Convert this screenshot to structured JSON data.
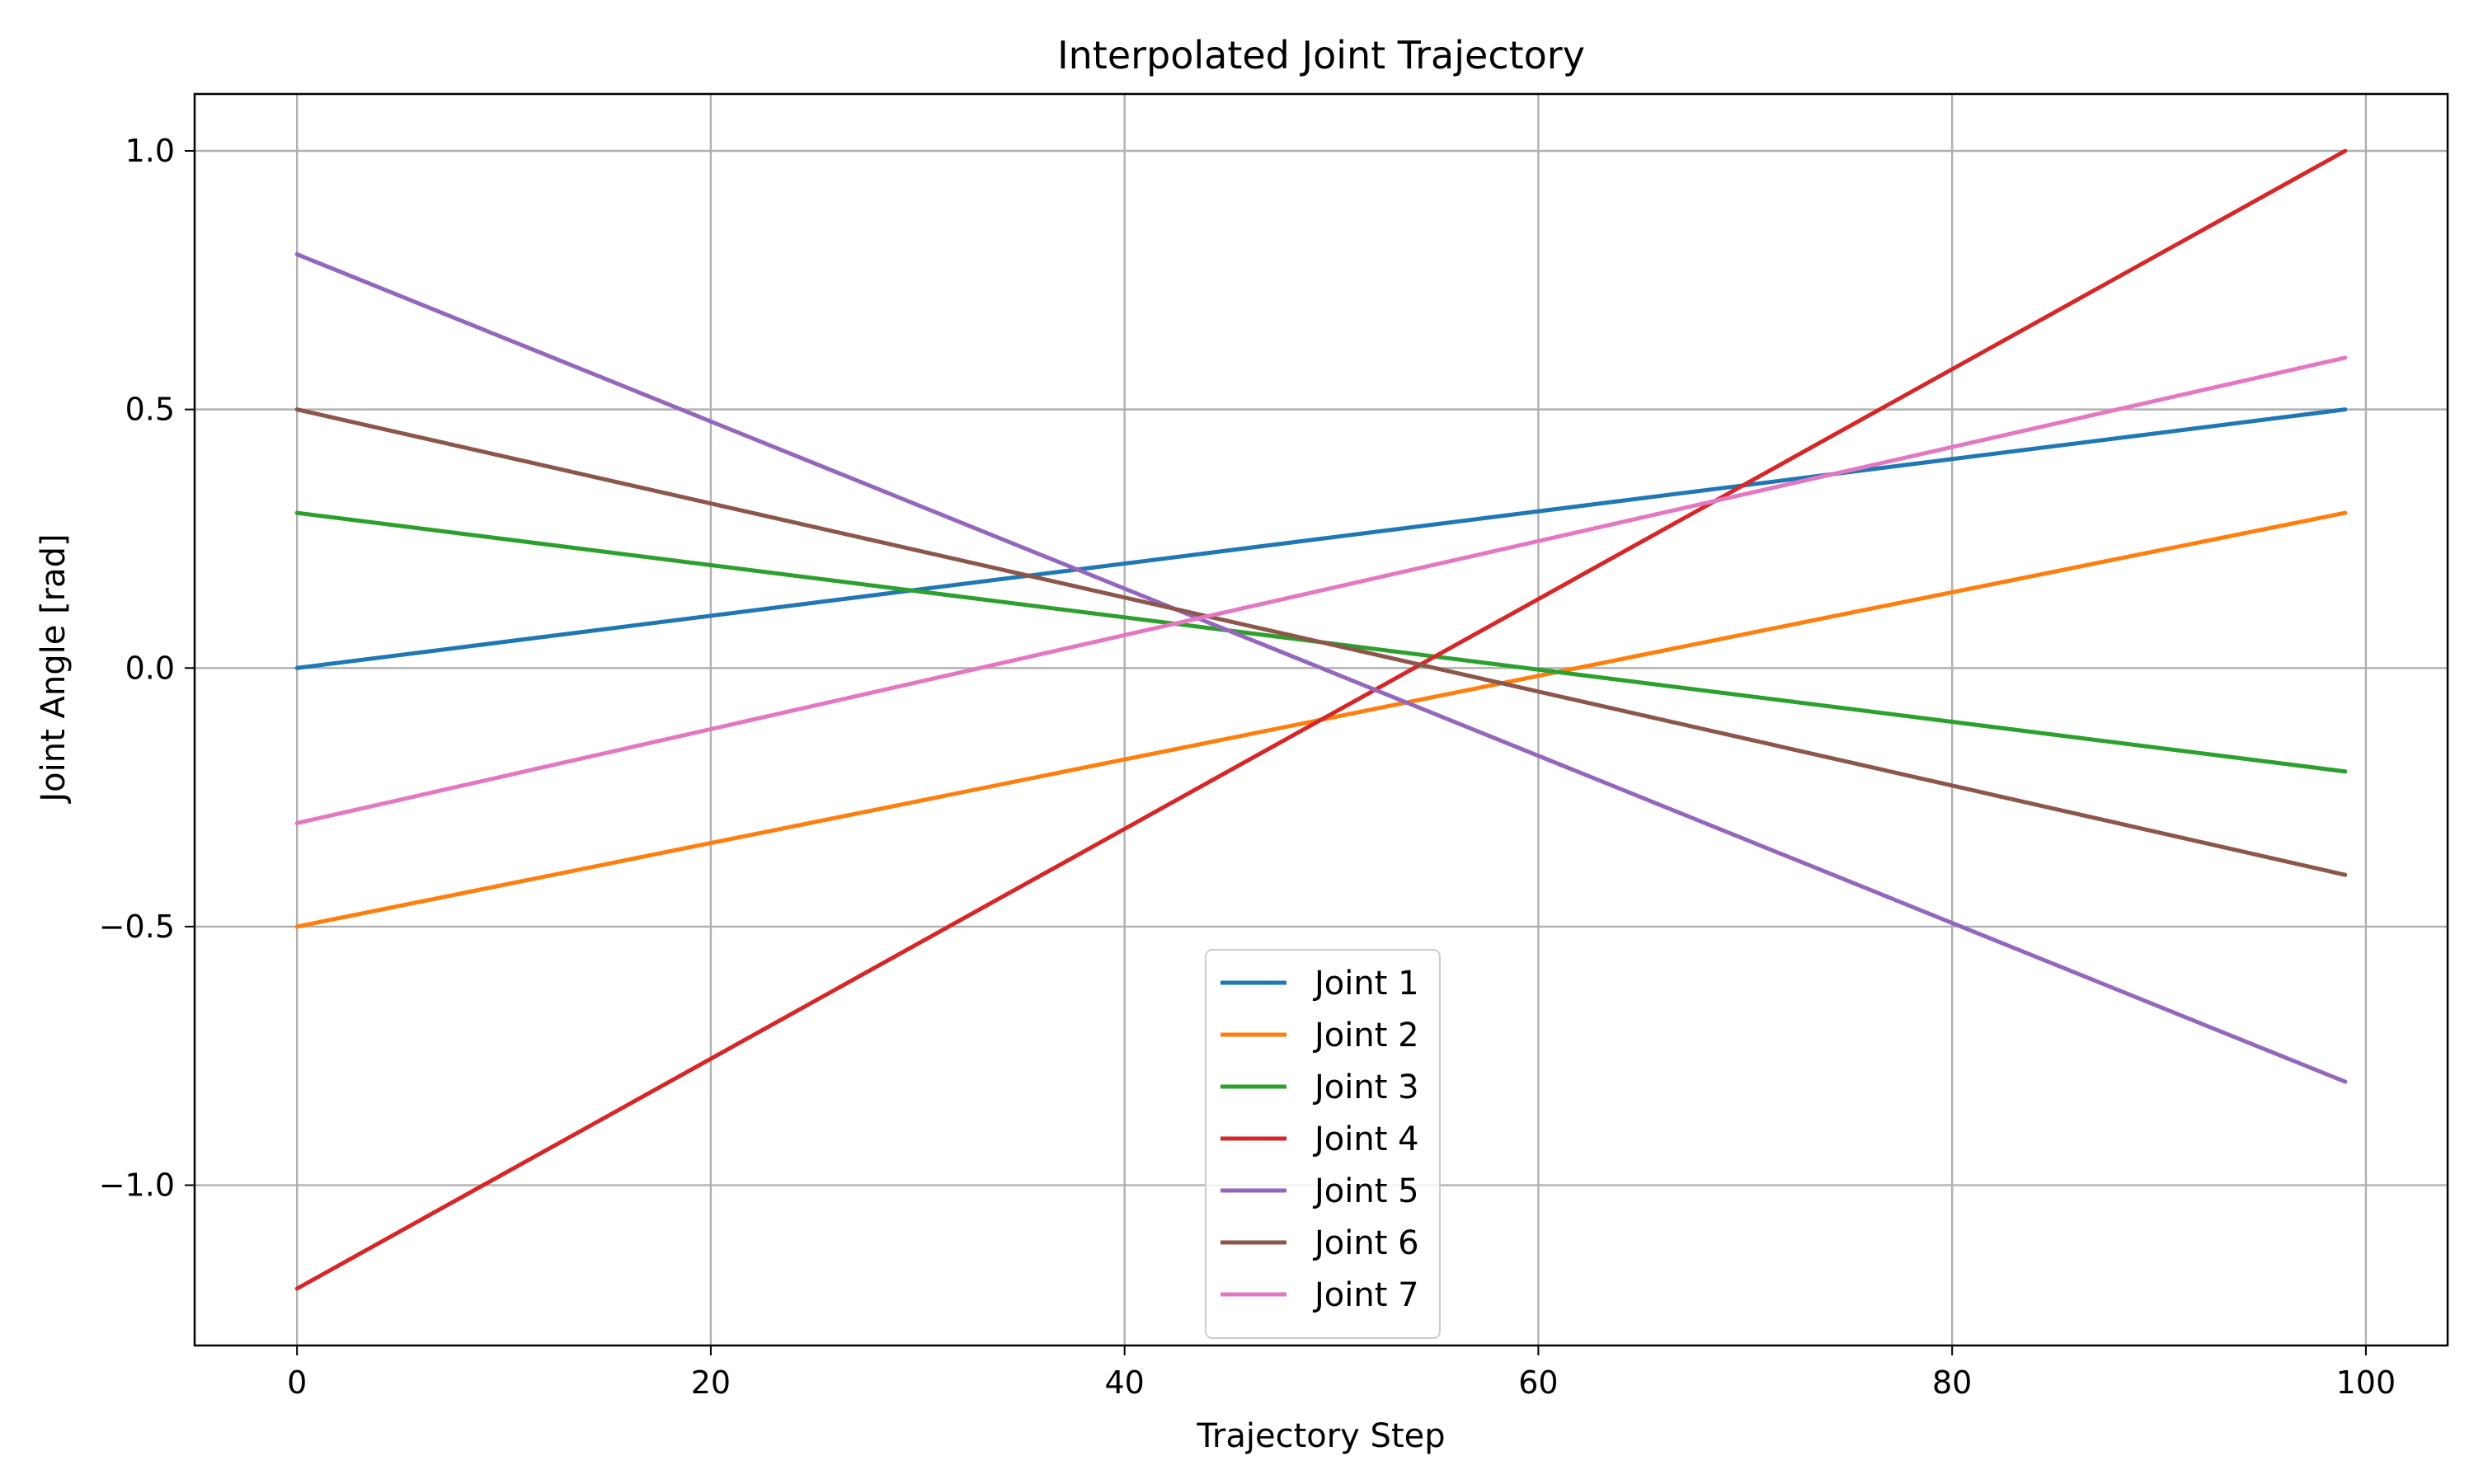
{
  "chart_data": {
    "type": "line",
    "title": "Interpolated Joint Trajectory",
    "xlabel": "Trajectory Step",
    "ylabel": "Joint Angle [rad]",
    "xlim": [
      -4.95,
      103.95
    ],
    "ylim": [
      -1.31,
      1.11
    ],
    "xticks": [
      0,
      20,
      40,
      60,
      80,
      100
    ],
    "yticks": [
      -1.0,
      -0.5,
      0.0,
      0.5,
      1.0
    ],
    "xtick_labels": [
      "0",
      "20",
      "40",
      "60",
      "80",
      "100"
    ],
    "ytick_labels": [
      "−1.0",
      "−0.5",
      "0.0",
      "0.5",
      "1.0"
    ],
    "grid": true,
    "legend_position": "lower-center",
    "x_range": [
      0,
      99
    ],
    "series": [
      {
        "name": "Joint 1",
        "color": "#1f77b4",
        "start": 0.0,
        "end": 0.5
      },
      {
        "name": "Joint 2",
        "color": "#ff7f0e",
        "start": -0.5,
        "end": 0.3
      },
      {
        "name": "Joint 3",
        "color": "#2ca02c",
        "start": 0.3,
        "end": -0.2
      },
      {
        "name": "Joint 4",
        "color": "#d62728",
        "start": -1.2,
        "end": 1.0
      },
      {
        "name": "Joint 5",
        "color": "#9467bd",
        "start": 0.8,
        "end": -0.8
      },
      {
        "name": "Joint 6",
        "color": "#8c564b",
        "start": 0.5,
        "end": -0.4
      },
      {
        "name": "Joint 7",
        "color": "#e377c2",
        "start": -0.3,
        "end": 0.6
      }
    ]
  }
}
